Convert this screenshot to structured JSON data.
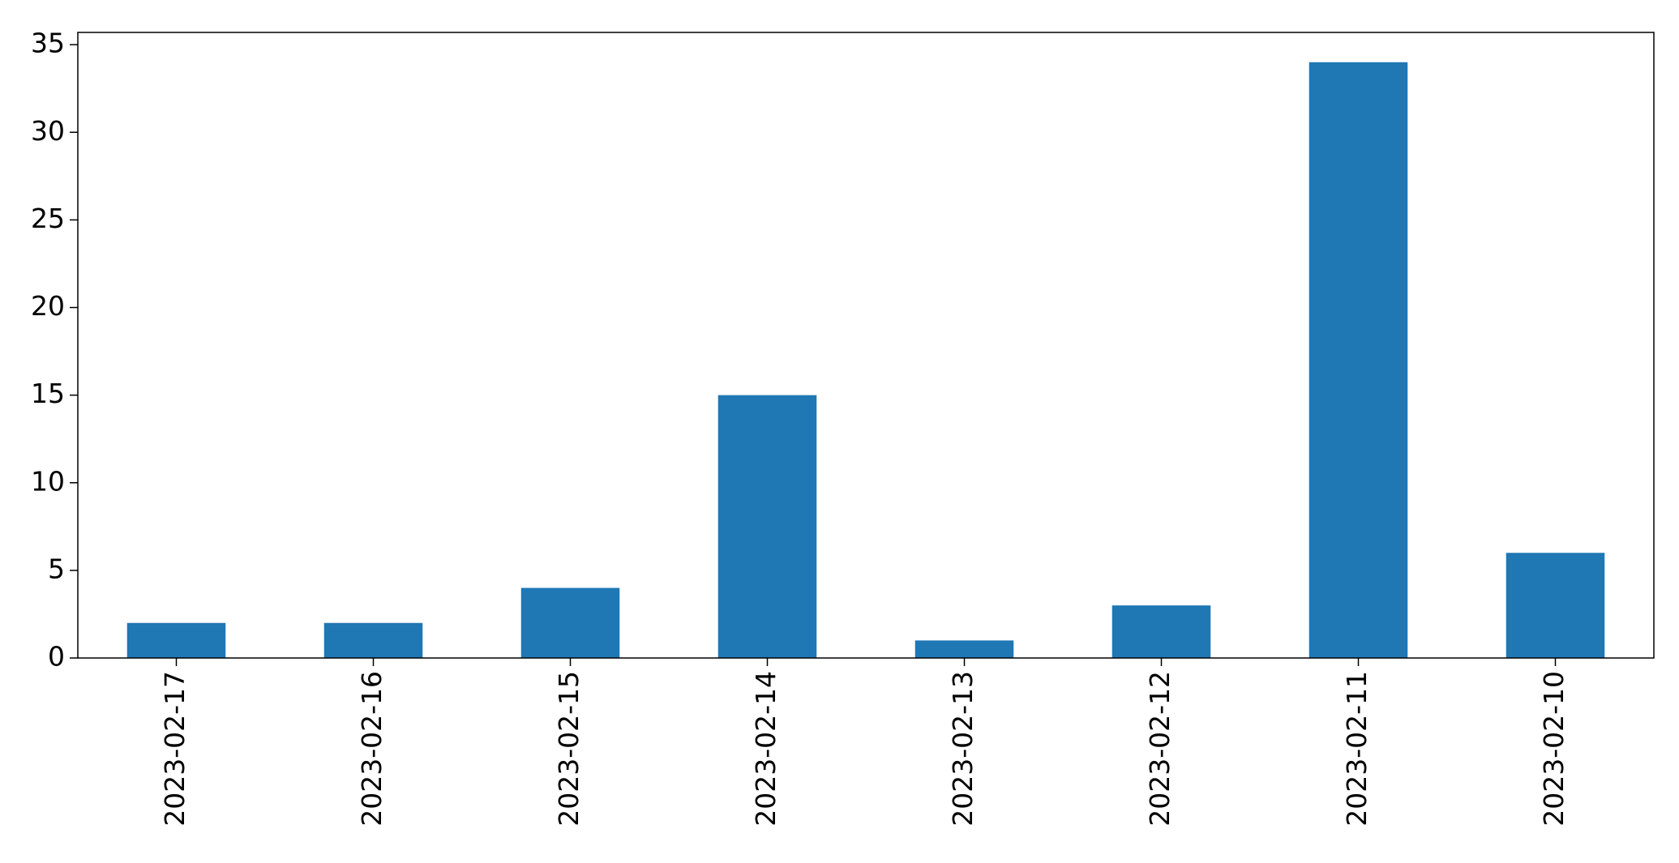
{
  "chart_data": {
    "type": "bar",
    "title": "",
    "xlabel": "",
    "ylabel": "",
    "categories": [
      "2023-02-17",
      "2023-02-16",
      "2023-02-15",
      "2023-02-14",
      "2023-02-13",
      "2023-02-12",
      "2023-02-11",
      "2023-02-10"
    ],
    "values": [
      2,
      2,
      4,
      15,
      1,
      3,
      34,
      6
    ],
    "ylim": [
      0,
      35.7
    ],
    "yticks": [
      0,
      5,
      10,
      15,
      20,
      25,
      30,
      35
    ],
    "bar_color": "#1f77b4",
    "grid": false,
    "legend": "none"
  }
}
